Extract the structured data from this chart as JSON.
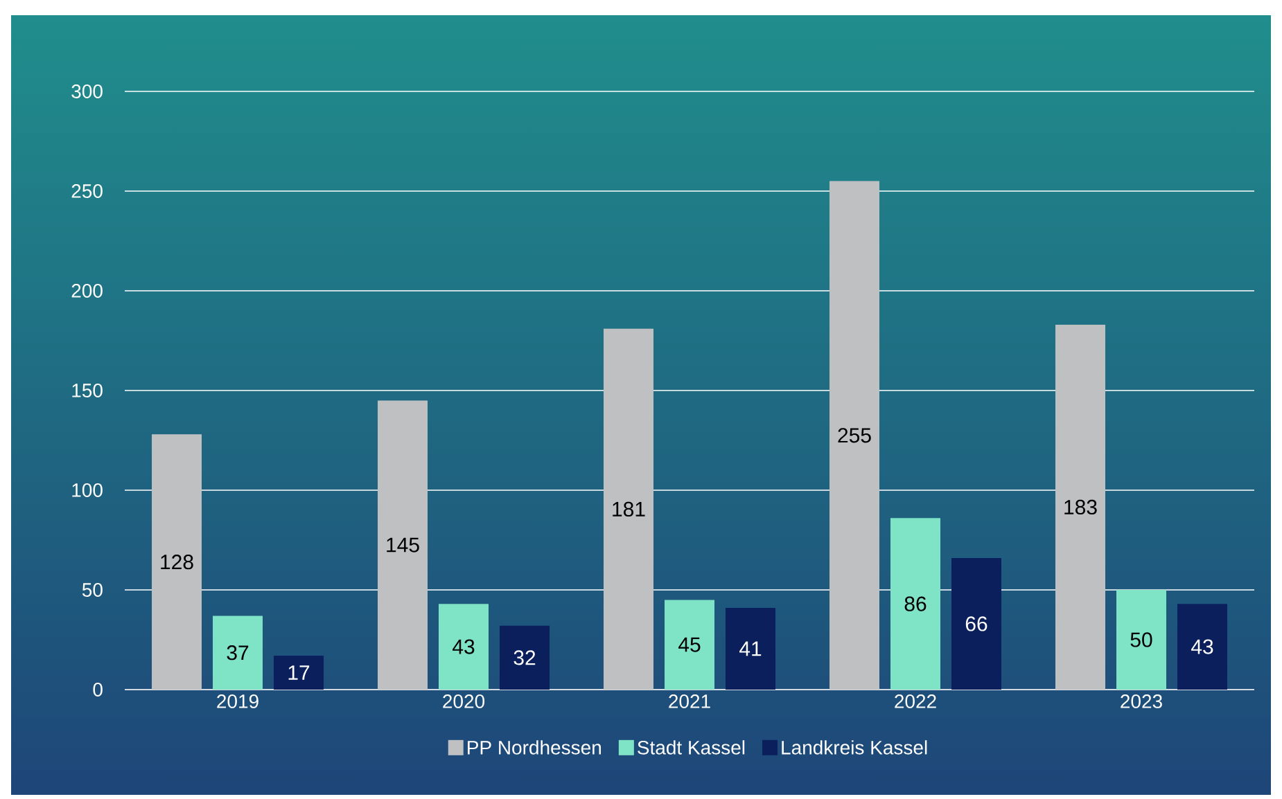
{
  "chart_data": {
    "type": "bar",
    "categories": [
      "2019",
      "2020",
      "2021",
      "2022",
      "2023"
    ],
    "series": [
      {
        "name": "PP Nordhessen",
        "color": "#bfc0c2",
        "values": [
          128,
          145,
          181,
          255,
          183
        ]
      },
      {
        "name": "Stadt Kassel",
        "color": "#7fe3c5",
        "values": [
          37,
          43,
          45,
          86,
          50
        ]
      },
      {
        "name": "Landkreis Kassel",
        "color": "#0b1f5c",
        "values": [
          17,
          32,
          41,
          66,
          43
        ]
      }
    ],
    "ylim": [
      0,
      300
    ],
    "yticks": [
      0,
      50,
      100,
      150,
      200,
      250,
      300
    ],
    "grid": "y",
    "legend": "bottom",
    "data_labels": true
  }
}
